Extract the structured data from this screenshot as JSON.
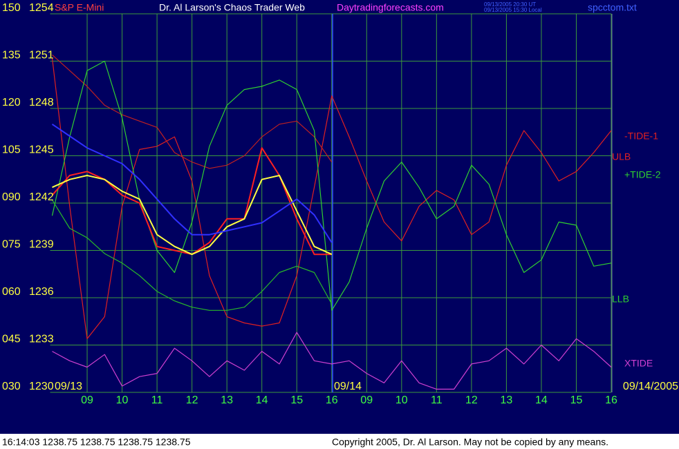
{
  "chart_data": {
    "type": "line",
    "title": "S&P E-Mini",
    "subtitle": "Dr. Al Larson's Chaos Trader Web",
    "site": "Daytradingforecasts.com",
    "timestamp_ut": "09/13/2005 20:30 UT",
    "timestamp_local": "09/13/2005 15:30 Local",
    "file": "spcctom.txt",
    "date_labels": [
      "09/13",
      "09/14",
      "09/14/2005"
    ],
    "status": "16:14:03  1238.75 1238.75 1238.75 1238.75",
    "copyright": "Copyright 2005, Dr. Al Larson. May not be copied by any means.",
    "grid": true,
    "grid_color": "#3c9a3c",
    "background": "#000060",
    "xlim": [
      0,
      16
    ],
    "xticks": [
      {
        "value": 1,
        "label": "09"
      },
      {
        "value": 2,
        "label": "10"
      },
      {
        "value": 3,
        "label": "11"
      },
      {
        "value": 4,
        "label": "12"
      },
      {
        "value": 5,
        "label": "13"
      },
      {
        "value": 6,
        "label": "14"
      },
      {
        "value": 7,
        "label": "15"
      },
      {
        "value": 8,
        "label": "16"
      },
      {
        "value": 9,
        "label": "09"
      },
      {
        "value": 10,
        "label": "10"
      },
      {
        "value": 11,
        "label": "11"
      },
      {
        "value": 12,
        "label": "12"
      },
      {
        "value": 13,
        "label": "13"
      },
      {
        "value": 14,
        "label": "14"
      },
      {
        "value": 15,
        "label": "15"
      },
      {
        "value": 16,
        "label": "16"
      }
    ],
    "ylim": [
      30,
      150
    ],
    "yticks": [
      {
        "value": 30,
        "label": "030"
      },
      {
        "value": 45,
        "label": "045"
      },
      {
        "value": 60,
        "label": "060"
      },
      {
        "value": 75,
        "label": "075"
      },
      {
        "value": 90,
        "label": "090"
      },
      105,
      120,
      135,
      150
    ],
    "y2lim": [
      1230,
      1254
    ],
    "y2ticks": [
      1230,
      1233,
      1236,
      1239,
      1242,
      1245,
      1248,
      1251,
      1254
    ],
    "x": [
      0,
      0.5,
      1,
      1.5,
      2,
      2.5,
      3,
      3.5,
      4,
      4.5,
      5,
      5.5,
      6,
      6.5,
      7,
      7.5,
      8,
      8.5,
      9,
      9.5,
      10,
      10.5,
      11,
      11.5,
      12,
      12.5,
      13,
      13.5,
      14,
      14.5,
      15,
      15.5,
      16
    ],
    "series": [
      {
        "name": "-TIDE-1",
        "color": "#e02020",
        "values": [
          136,
          89,
          47,
          54,
          89,
          107,
          108,
          111,
          97,
          67,
          54,
          52,
          51,
          52,
          67,
          95,
          124,
          111,
          97,
          84,
          78,
          89,
          94,
          91,
          80,
          84,
          102,
          113,
          106,
          97,
          100,
          106,
          113
        ]
      },
      {
        "name": "ULB",
        "color": "#c02020",
        "values": [
          137,
          132,
          127,
          121,
          118,
          116,
          114,
          106,
          103,
          101,
          102,
          105,
          111,
          115,
          116,
          111,
          103,
          null,
          null,
          null,
          null,
          null,
          null,
          null,
          null,
          null,
          null,
          null,
          null,
          null,
          null,
          null,
          null
        ]
      },
      {
        "name": "+TIDE-2",
        "color": "#30d030",
        "values": [
          86,
          111,
          132,
          135,
          117,
          91,
          75,
          68,
          84,
          108,
          121,
          126,
          127,
          129,
          126,
          113,
          56,
          65,
          82,
          97,
          103,
          95,
          85,
          89,
          102,
          96,
          80,
          68,
          72,
          84,
          83,
          70,
          71
        ]
      },
      {
        "name": "LLB",
        "color": "#28b828",
        "values": [
          91,
          82,
          79,
          74,
          71,
          67,
          62,
          59,
          57,
          56,
          56,
          57,
          62,
          68,
          70,
          68,
          58,
          null,
          null,
          null,
          null,
          null,
          null,
          null,
          null,
          null,
          null,
          null,
          null,
          null,
          null,
          null,
          null
        ]
      },
      {
        "name": "XTIDE",
        "color": "#d040d0",
        "values": [
          43,
          40,
          38,
          42,
          32,
          35,
          36,
          44,
          40,
          35,
          40,
          37,
          43,
          39,
          49,
          40,
          39,
          40,
          36,
          33,
          40,
          33,
          31,
          31,
          39,
          40,
          44,
          39,
          45,
          40,
          47,
          43,
          38
        ]
      },
      {
        "color": "#ff2020",
        "axis": "y2",
        "values": [
          1242.5,
          1243.75,
          1244,
          1243.5,
          1242.5,
          1242,
          1239.25,
          1239,
          1238.75,
          1239.5,
          1241,
          1241,
          1245.5,
          1243.75,
          1241,
          1238.75,
          1238.75,
          null,
          null,
          null,
          null,
          null,
          null,
          null,
          null,
          null,
          null,
          null,
          null,
          null,
          null,
          null,
          null
        ]
      },
      {
        "color": "#ffff40",
        "axis": "y2",
        "values": [
          1243,
          1243.5,
          1243.75,
          1243.5,
          1242.75,
          1242.25,
          1240,
          1239.25,
          1238.75,
          1239.25,
          1240.5,
          1241,
          1243.5,
          1243.75,
          1241.5,
          1239.25,
          1238.75,
          null,
          null,
          null,
          null,
          null,
          null,
          null,
          null,
          null,
          null,
          null,
          null,
          null,
          null,
          null,
          null
        ]
      },
      {
        "color": "#3030ff",
        "axis": "y2",
        "values": [
          1247,
          1246.25,
          1245.5,
          1245,
          1244.5,
          1243.5,
          1242.25,
          1241,
          1240,
          1240,
          1240.25,
          1240.5,
          1240.75,
          1241.5,
          1242.25,
          1241.25,
          1239.5,
          null,
          null,
          null,
          null,
          null,
          null,
          null,
          null,
          null,
          null,
          null,
          null,
          null,
          null,
          null,
          null
        ]
      }
    ]
  }
}
